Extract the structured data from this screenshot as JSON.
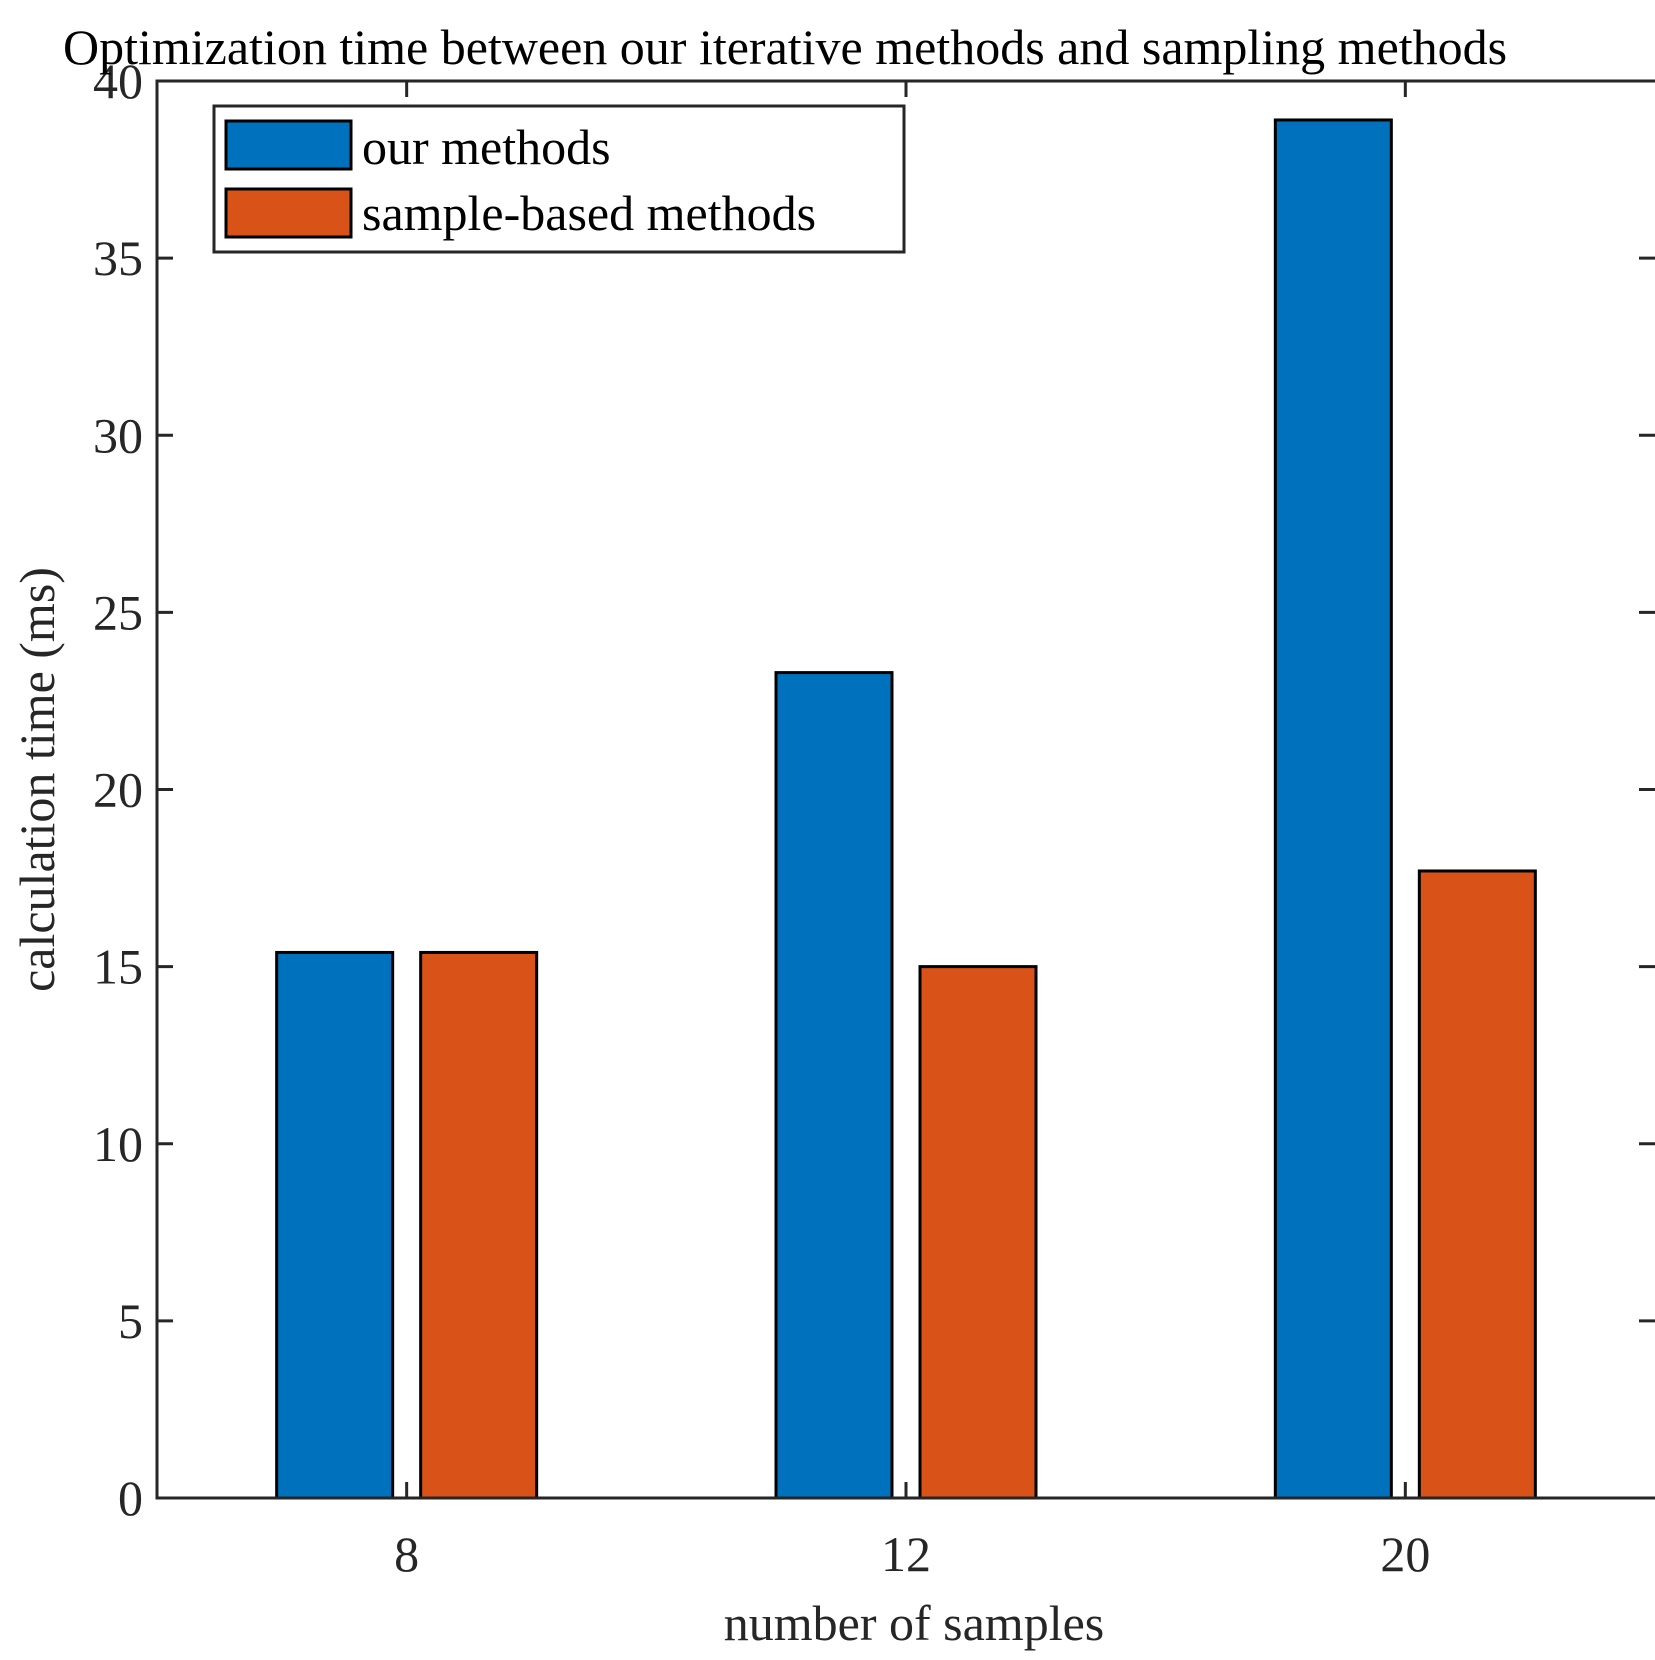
{
  "chart_data": {
    "type": "bar",
    "title": "Optimization time between our iterative methods and sampling methods",
    "xlabel": "number of samples",
    "ylabel": "calculation time (ms)",
    "categories": [
      "8",
      "12",
      "20"
    ],
    "series": [
      {
        "name": "our methods",
        "values": [
          15.4,
          23.3,
          38.9
        ],
        "color": "#0072BD"
      },
      {
        "name": "sample-based methods",
        "values": [
          15.4,
          15.0,
          17.7
        ],
        "color": "#D95319"
      }
    ],
    "ylim": [
      0,
      40
    ],
    "yticks": [
      0,
      5,
      10,
      15,
      20,
      25,
      30,
      35,
      40
    ],
    "grid": false,
    "legend_position": "top-left",
    "axis_color": "#262626",
    "edge_color": "#000000"
  }
}
